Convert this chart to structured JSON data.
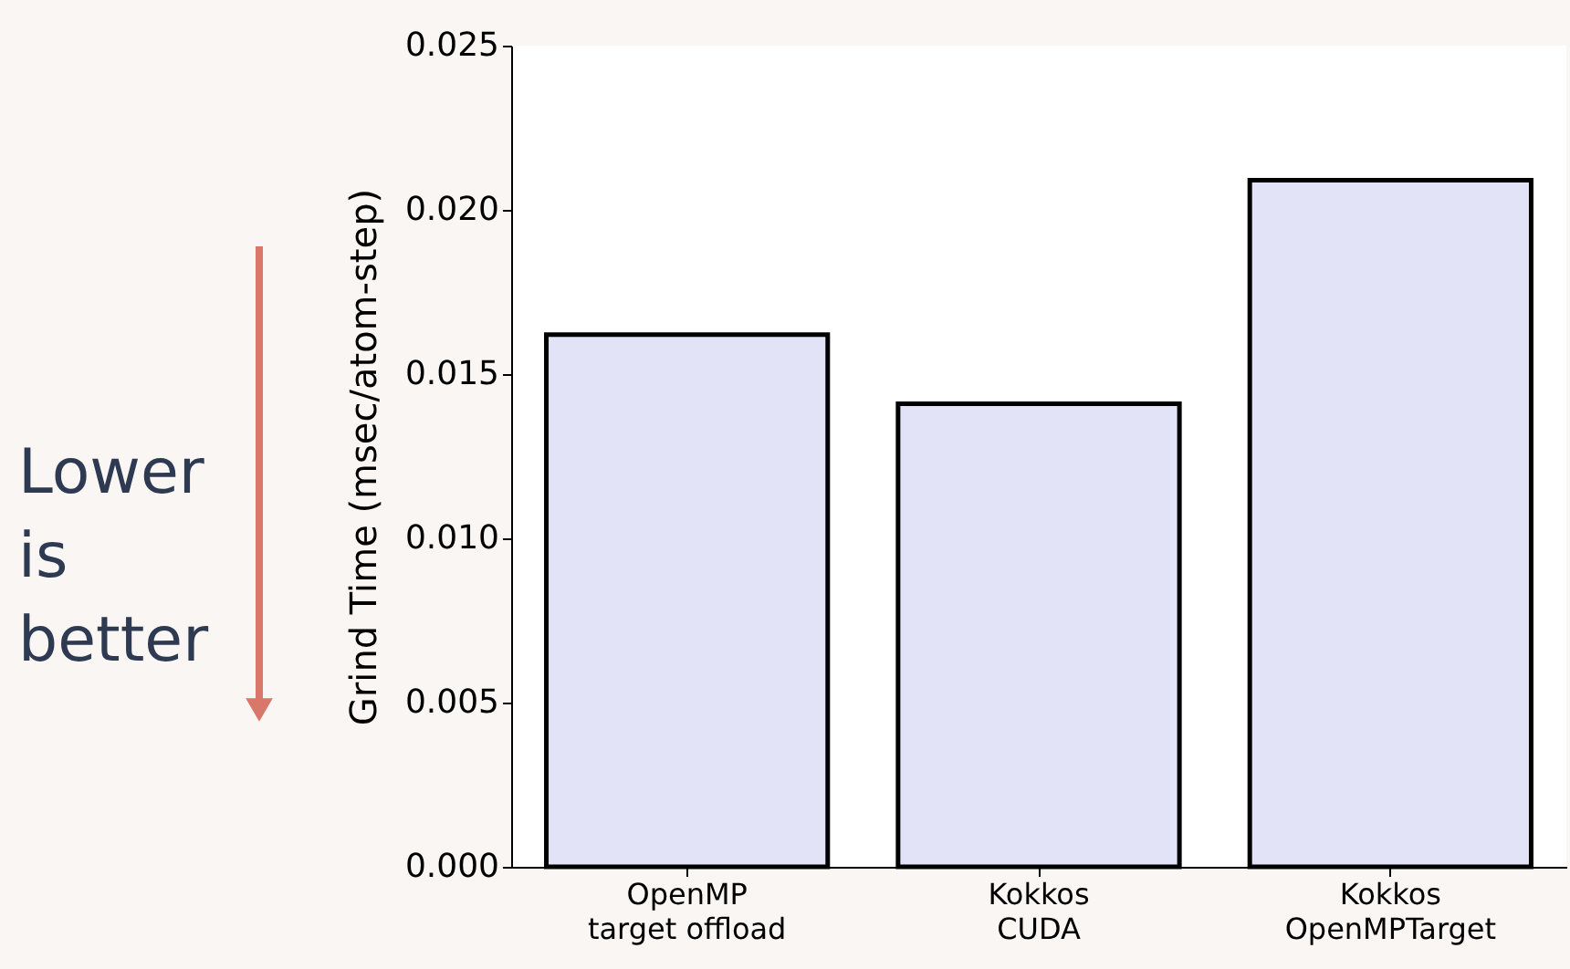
{
  "chart_data": {
    "type": "bar",
    "ylabel": "Grind Time (msec/atom-step)",
    "categories": [
      "OpenMP\ntarget offload",
      "Kokkos\nCUDA",
      "Kokkos\nOpenMPTarget"
    ],
    "values": [
      0.0162,
      0.0141,
      0.0209
    ],
    "color": "#e3e3f8",
    "ylim": [
      0,
      0.025
    ],
    "yticks": [
      {
        "value": 0,
        "label": "0.000"
      },
      0.005,
      {
        "value": 0.01,
        "label": "0.010"
      },
      0.015,
      {
        "value": 0.02,
        "label": "0.020"
      },
      0.025
    ],
    "grid": false,
    "annotations": [
      "Lower is better"
    ]
  }
}
